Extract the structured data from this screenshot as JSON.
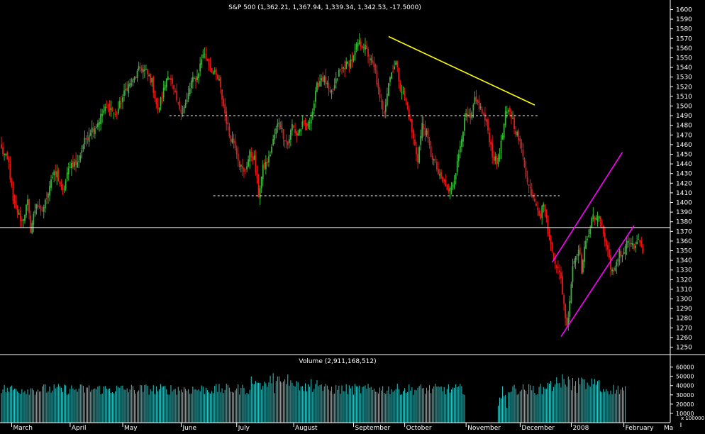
{
  "chart_data": [
    {
      "type": "candlestick",
      "title": "S&P 500 (1,362.21, 1,367.94, 1,339.34, 1,342.53, -17.5000)",
      "ylim": [
        1246,
        1604
      ],
      "yticks": [
        1250,
        1260,
        1270,
        1280,
        1290,
        1300,
        1310,
        1320,
        1330,
        1340,
        1350,
        1360,
        1370,
        1380,
        1390,
        1400,
        1410,
        1420,
        1430,
        1440,
        1450,
        1460,
        1470,
        1480,
        1490,
        1500,
        1510,
        1520,
        1530,
        1540,
        1550,
        1560,
        1570,
        1580,
        1590,
        1600
      ],
      "grid": false,
      "colors": {
        "up": "#3ab43a",
        "down": "#e81818",
        "background": "#000000",
        "axis": "#ffffff"
      },
      "anchors": [
        [
          0,
          1455
        ],
        [
          5,
          1440
        ],
        [
          8,
          1400
        ],
        [
          14,
          1380
        ],
        [
          18,
          1400
        ],
        [
          20,
          1372
        ],
        [
          24,
          1400
        ],
        [
          27,
          1388
        ],
        [
          30,
          1400
        ],
        [
          34,
          1425
        ],
        [
          38,
          1430
        ],
        [
          42,
          1410
        ],
        [
          47,
          1440
        ],
        [
          52,
          1440
        ],
        [
          56,
          1460
        ],
        [
          61,
          1475
        ],
        [
          65,
          1480
        ],
        [
          70,
          1495
        ],
        [
          74,
          1500
        ],
        [
          78,
          1490
        ],
        [
          82,
          1505
        ],
        [
          86,
          1520
        ],
        [
          90,
          1525
        ],
        [
          95,
          1540
        ],
        [
          99,
          1535
        ],
        [
          103,
          1525
        ],
        [
          107,
          1495
        ],
        [
          110,
          1510
        ],
        [
          114,
          1535
        ],
        [
          117,
          1520
        ],
        [
          121,
          1500
        ],
        [
          124,
          1495
        ],
        [
          127,
          1505
        ],
        [
          130,
          1525
        ],
        [
          134,
          1530
        ],
        [
          138,
          1555
        ],
        [
          141,
          1548
        ],
        [
          145,
          1535
        ],
        [
          149,
          1525
        ],
        [
          152,
          1500
        ],
        [
          156,
          1470
        ],
        [
          160,
          1460
        ],
        [
          163,
          1440
        ],
        [
          166,
          1430
        ],
        [
          170,
          1450
        ],
        [
          173,
          1445
        ],
        [
          176,
          1408
        ],
        [
          179,
          1435
        ],
        [
          183,
          1445
        ],
        [
          187,
          1470
        ],
        [
          190,
          1485
        ],
        [
          193,
          1470
        ],
        [
          196,
          1460
        ],
        [
          199,
          1480
        ],
        [
          202,
          1470
        ],
        [
          206,
          1480
        ],
        [
          210,
          1480
        ],
        [
          213,
          1495
        ],
        [
          216,
          1520
        ],
        [
          219,
          1530
        ],
        [
          222,
          1525
        ],
        [
          225,
          1510
        ],
        [
          228,
          1520
        ],
        [
          231,
          1535
        ],
        [
          234,
          1540
        ],
        [
          238,
          1545
        ],
        [
          241,
          1550
        ],
        [
          244,
          1565
        ],
        [
          248,
          1563
        ],
        [
          252,
          1550
        ],
        [
          256,
          1535
        ],
        [
          259,
          1505
        ],
        [
          262,
          1495
        ],
        [
          265,
          1525
        ],
        [
          268,
          1540
        ],
        [
          270,
          1545
        ],
        [
          273,
          1520
        ],
        [
          276,
          1510
        ],
        [
          279,
          1490
        ],
        [
          282,
          1465
        ],
        [
          285,
          1445
        ],
        [
          288,
          1480
        ],
        [
          291,
          1470
        ],
        [
          294,
          1450
        ],
        [
          297,
          1440
        ],
        [
          300,
          1425
        ],
        [
          303,
          1420
        ],
        [
          306,
          1410
        ],
        [
          309,
          1420
        ],
        [
          312,
          1440
        ],
        [
          315,
          1470
        ],
        [
          318,
          1490
        ],
        [
          321,
          1485
        ],
        [
          324,
          1505
        ],
        [
          327,
          1500
        ],
        [
          330,
          1490
        ],
        [
          333,
          1475
        ],
        [
          336,
          1450
        ],
        [
          339,
          1440
        ],
        [
          342,
          1460
        ],
        [
          345,
          1490
        ],
        [
          348,
          1495
        ],
        [
          351,
          1480
        ],
        [
          354,
          1465
        ],
        [
          357,
          1450
        ],
        [
          360,
          1420
        ],
        [
          363,
          1410
        ],
        [
          366,
          1400
        ],
        [
          369,
          1385
        ],
        [
          371,
          1402
        ],
        [
          373,
          1380
        ],
        [
          376,
          1355
        ],
        [
          379,
          1340
        ],
        [
          381,
          1330
        ],
        [
          383,
          1320
        ],
        [
          385,
          1295
        ],
        [
          387,
          1270
        ],
        [
          389,
          1300
        ],
        [
          391,
          1335
        ],
        [
          393,
          1345
        ],
        [
          395,
          1355
        ],
        [
          397,
          1330
        ],
        [
          399,
          1350
        ],
        [
          401,
          1365
        ],
        [
          403,
          1375
        ],
        [
          405,
          1385
        ],
        [
          407,
          1380
        ],
        [
          409,
          1390
        ],
        [
          411,
          1375
        ],
        [
          413,
          1360
        ],
        [
          415,
          1350
        ],
        [
          417,
          1335
        ],
        [
          419,
          1325
        ],
        [
          421,
          1335
        ],
        [
          423,
          1350
        ],
        [
          425,
          1345
        ],
        [
          427,
          1355
        ],
        [
          429,
          1360
        ],
        [
          431,
          1355
        ],
        [
          433,
          1352
        ],
        [
          435,
          1360
        ],
        [
          437,
          1358
        ],
        [
          439,
          1343
        ]
      ],
      "hlines": [
        {
          "value": 1374,
          "style": "solid",
          "color": "#ffffff"
        },
        {
          "value": 1490,
          "from_bar": 115,
          "to_bar": 368,
          "style": "dashed",
          "color": "#ffffff"
        },
        {
          "value": 1407,
          "from_bar": 145,
          "to_bar": 382,
          "style": "dashed",
          "color": "#ffffff"
        }
      ],
      "trendlines": [
        {
          "from": [
            265,
            1572
          ],
          "to": [
            365,
            1501
          ],
          "color": "#ffff00"
        },
        {
          "from": [
            377,
            1338
          ],
          "to": [
            425,
            1452
          ],
          "color": "#ff00ff"
        },
        {
          "from": [
            383,
            1261
          ],
          "to": [
            433,
            1376
          ],
          "color": "#ff00ff"
        }
      ]
    },
    {
      "type": "bar",
      "title": "Volume (2,911,168,512)",
      "ylim": [
        0,
        62000
      ],
      "yticks": [
        10000,
        20000,
        30000,
        40000,
        50000,
        60000
      ],
      "unit_label": "x 100000",
      "color": "#2ec8c8",
      "gaps": [
        [
          318,
          346
        ]
      ],
      "pre_gap_bars": [
        [
          340,
          370
        ],
        [
          356,
          372
        ]
      ],
      "x_months": [
        "March",
        "April",
        "May",
        "June",
        "July",
        "August",
        "September",
        "October",
        "November",
        "December",
        "2008",
        "February",
        "Ma"
      ]
    }
  ]
}
